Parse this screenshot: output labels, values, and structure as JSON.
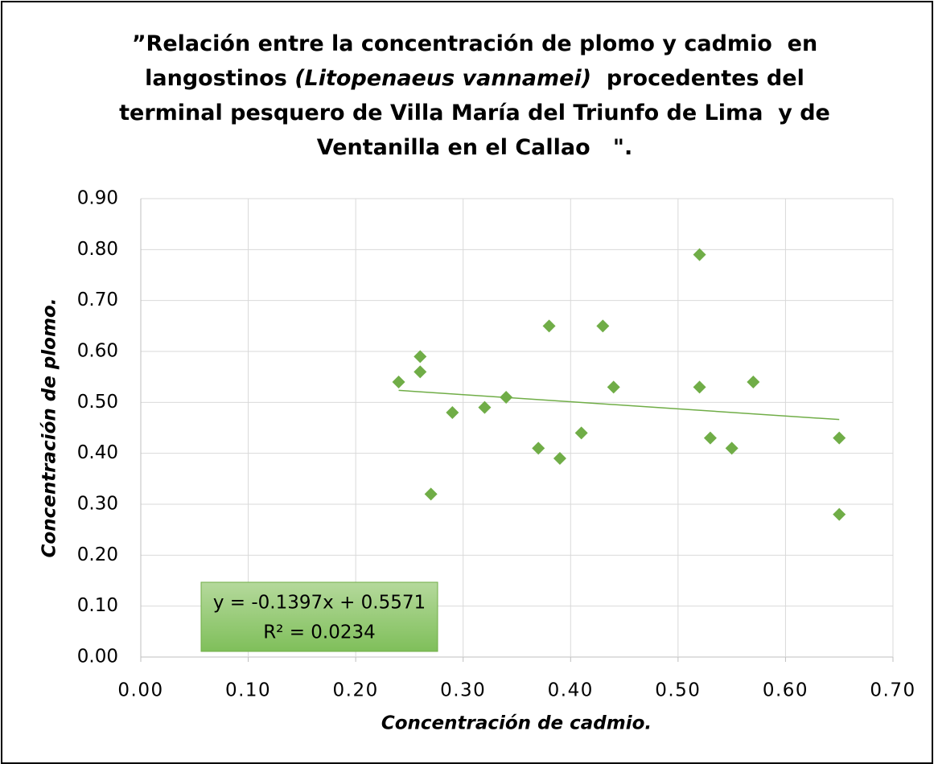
{
  "chart_data": {
    "type": "scatter",
    "title": [
      [
        {
          "text": "”Relación entre la concentración de plomo y cadmio  en",
          "italic": false
        }
      ],
      [
        {
          "text": "langostinos ",
          "italic": false
        },
        {
          "text": "(Litopenaeus vannamei)",
          "italic": true
        },
        {
          "text": "  procedentes del",
          "italic": false
        }
      ],
      [
        {
          "text": "terminal pesquero de Villa María del Triunfo de Lima  y de",
          "italic": false
        }
      ],
      [
        {
          "text": "Ventanilla en el Callao   \".",
          "italic": false
        }
      ]
    ],
    "xlabel": "Concentración de cadmio.",
    "ylabel": "Concentración de plomo.",
    "x": [
      0.24,
      0.26,
      0.26,
      0.27,
      0.29,
      0.32,
      0.34,
      0.37,
      0.38,
      0.39,
      0.41,
      0.43,
      0.44,
      0.52,
      0.52,
      0.53,
      0.55,
      0.57,
      0.65,
      0.65
    ],
    "values": [
      0.54,
      0.59,
      0.56,
      0.32,
      0.48,
      0.49,
      0.51,
      0.41,
      0.65,
      0.39,
      0.44,
      0.65,
      0.53,
      0.79,
      0.53,
      0.43,
      0.41,
      0.54,
      0.43,
      0.28
    ],
    "color": "#70ad47",
    "xlim": [
      0,
      0.7
    ],
    "ylim": [
      0,
      0.9
    ],
    "xticks": [
      {
        "value": 0,
        "label": "0.00"
      },
      {
        "value": 0.1,
        "label": "0.10"
      },
      {
        "value": 0.2,
        "label": "0.20"
      },
      {
        "value": 0.3,
        "label": "0.30"
      },
      {
        "value": 0.4,
        "label": "0.40"
      },
      {
        "value": 0.5,
        "label": "0.50"
      },
      {
        "value": 0.6,
        "label": "0.60"
      },
      {
        "value": 0.7,
        "label": "0.70"
      }
    ],
    "yticks": [
      {
        "value": 0,
        "label": "0.00"
      },
      {
        "value": 0.1,
        "label": "0.10"
      },
      {
        "value": 0.2,
        "label": "0.20"
      },
      {
        "value": 0.3,
        "label": "0.30"
      },
      {
        "value": 0.4,
        "label": "0.40"
      },
      {
        "value": 0.5,
        "label": "0.50"
      },
      {
        "value": 0.6,
        "label": "0.60"
      },
      {
        "value": 0.7,
        "label": "0.70"
      },
      {
        "value": 0.8,
        "label": "0.80"
      },
      {
        "value": 0.9,
        "label": "0.90"
      }
    ],
    "grid": true,
    "trendline": {
      "slope": -0.1397,
      "intercept": 0.5571,
      "color": "#70ad47",
      "equation": "y = -0.1397x + 0.5571",
      "r2_label": "R² = 0.0234"
    }
  }
}
